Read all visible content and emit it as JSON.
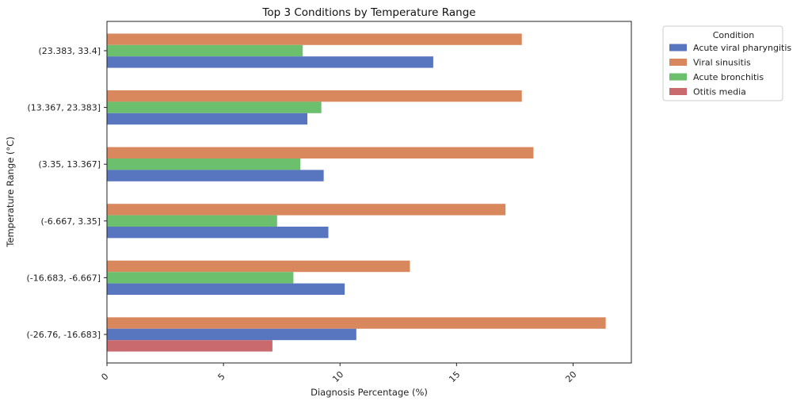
{
  "chart_data": {
    "type": "bar",
    "orientation": "horizontal",
    "title": "Top 3 Conditions by Temperature Range",
    "xlabel": "Diagnosis Percentage (%)",
    "ylabel": "Temperature Range (°C)",
    "xlim": [
      0,
      22.5
    ],
    "x_ticks": [
      0,
      5,
      10,
      15,
      20
    ],
    "categories": [
      "(-26.76, -16.683]",
      "(-16.683, -6.667]",
      "(-6.667, 3.35]",
      "(3.35, 13.367]",
      "(13.367, 23.383]",
      "(23.383, 33.4]"
    ],
    "series": [
      {
        "name": "Acute viral pharyngitis",
        "color": "#5875c0",
        "values": [
          10.7,
          10.2,
          9.5,
          9.3,
          8.6,
          14.0
        ]
      },
      {
        "name": "Viral sinusitis",
        "color": "#d9885e",
        "values": [
          21.4,
          13.0,
          17.1,
          18.3,
          17.8,
          17.8
        ]
      },
      {
        "name": "Acute bronchitis",
        "color": "#6cbf6c",
        "values": [
          null,
          8.0,
          7.3,
          8.3,
          9.2,
          8.4
        ]
      },
      {
        "name": "Otitis media",
        "color": "#c86a6e",
        "values": [
          7.1,
          null,
          null,
          null,
          null,
          null
        ]
      }
    ],
    "legend": {
      "title": "Condition",
      "placement": "outside-top-right"
    },
    "grid": false
  }
}
